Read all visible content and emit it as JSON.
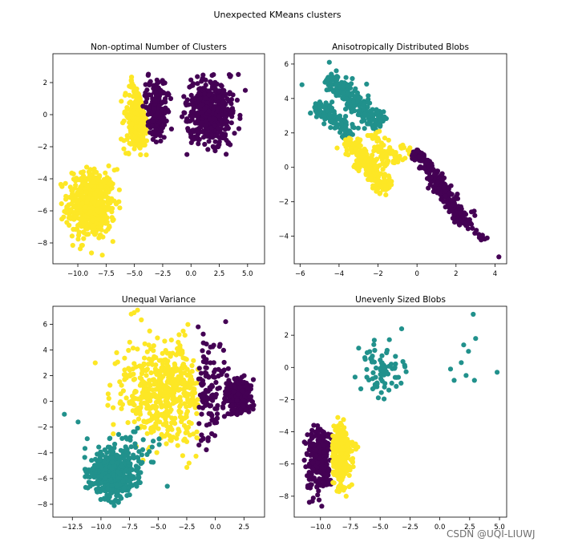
{
  "figure": {
    "suptitle": "Unexpected KMeans clusters",
    "watermark": "CSDN @UQI-LIUWJ"
  },
  "colors": {
    "purple": "#440154",
    "teal": "#21918c",
    "yellow": "#fde725"
  },
  "chart_data": [
    {
      "type": "scatter",
      "title": "Non-optimal Number of Clusters",
      "xlim": [
        -12.2,
        6.5
      ],
      "ylim": [
        -9.3,
        3.8
      ],
      "xticks": [
        -10.0,
        -7.5,
        -5.0,
        -2.5,
        0.0,
        2.5,
        5.0
      ],
      "xtick_labels": [
        "−10.0",
        "−7.5",
        "−5.0",
        "−2.5",
        "0.0",
        "2.5",
        "5.0"
      ],
      "yticks": [
        2,
        0,
        -2,
        -4,
        -6,
        -8
      ],
      "ytick_labels": [
        "2",
        "0",
        "−2",
        "−4",
        "−6",
        "−8"
      ],
      "clusters": [
        {
          "color": "yellow",
          "shape": "gauss",
          "cx": -8.8,
          "cy": -5.6,
          "sx": 1.05,
          "sy": 1.1,
          "n": 520,
          "range": [
            -11.6,
            -6.1,
            -8.9,
            -3.1
          ]
        },
        {
          "color": "yellow",
          "shape": "gauss",
          "cx": -4.6,
          "cy": -0.3,
          "sx": 0.65,
          "sy": 1.0,
          "n": 260,
          "range": [
            -6.2,
            -3.9,
            -2.6,
            2.9
          ],
          "xmax_line": [
            -3.9,
            -0.45
          ]
        },
        {
          "color": "purple",
          "shape": "gauss",
          "cx": -3.0,
          "cy": 0.4,
          "sx": 0.55,
          "sy": 0.95,
          "n": 200,
          "range": [
            -4.3,
            -1.7,
            -1.9,
            2.7
          ],
          "xmin_line": [
            -4.3,
            -0.45
          ]
        },
        {
          "color": "purple",
          "shape": "gauss",
          "cx": 1.7,
          "cy": 0.1,
          "sx": 1.0,
          "sy": 1.0,
          "n": 520,
          "range": [
            -0.9,
            5.8,
            -2.6,
            2.6
          ]
        }
      ]
    },
    {
      "type": "scatter",
      "title": "Anisotropically Distributed Blobs",
      "xlim": [
        -6.3,
        4.6
      ],
      "ylim": [
        -5.6,
        6.6
      ],
      "xticks": [
        -6,
        -4,
        -2,
        0,
        2,
        4
      ],
      "xtick_labels": [
        "−6",
        "−4",
        "−2",
        "0",
        "2",
        "4"
      ],
      "yticks": [
        6,
        4,
        2,
        0,
        -2,
        -4
      ],
      "ytick_labels": [
        "6",
        "4",
        "2",
        "0",
        "−2",
        "−4"
      ],
      "clusters": [
        {
          "color": "teal",
          "shape": "band",
          "x1": -4.6,
          "y1": 5.3,
          "x2": -1.8,
          "y2": 2.4,
          "w": 0.3,
          "n": 230
        },
        {
          "color": "teal",
          "shape": "band",
          "x1": -5.2,
          "y1": 3.6,
          "x2": -3.3,
          "y2": 1.9,
          "w": 0.25,
          "n": 120
        },
        {
          "color": "yellow",
          "shape": "band",
          "x1": -3.6,
          "y1": 1.7,
          "x2": -1.5,
          "y2": -1.3,
          "w": 0.28,
          "n": 230
        },
        {
          "color": "yellow",
          "shape": "band",
          "x1": -2.4,
          "y1": 2.0,
          "x2": -1.0,
          "y2": 0.2,
          "w": 0.2,
          "n": 70
        },
        {
          "color": "yellow",
          "shape": "band",
          "x1": -0.8,
          "y1": 1.3,
          "x2": -0.2,
          "y2": 0.6,
          "w": 0.12,
          "n": 18
        },
        {
          "color": "purple",
          "shape": "band",
          "x1": -0.1,
          "y1": 1.0,
          "x2": 2.5,
          "y2": -3.2,
          "w": 0.22,
          "n": 260
        },
        {
          "color": "purple",
          "shape": "band",
          "x1": 2.5,
          "y1": -3.2,
          "x2": 3.5,
          "y2": -4.2,
          "w": 0.12,
          "n": 20
        }
      ],
      "extra_points": [
        {
          "color": "purple",
          "x": 4.2,
          "y": -5.2
        },
        {
          "color": "teal",
          "x": -5.9,
          "y": 4.8
        },
        {
          "color": "teal",
          "x": -4.5,
          "y": 6.1
        },
        {
          "color": "teal",
          "x": -5.2,
          "y": 3.7
        },
        {
          "color": "yellow",
          "x": -1.6,
          "y": -1.6
        },
        {
          "color": "purple",
          "x": 3.6,
          "y": -4.1
        }
      ]
    },
    {
      "type": "scatter",
      "title": "Unequal Variance",
      "xlim": [
        -14.2,
        4.3
      ],
      "ylim": [
        -9.0,
        7.4
      ],
      "xticks": [
        -12.5,
        -10.0,
        -7.5,
        -5.0,
        -2.5,
        0.0,
        2.5
      ],
      "xtick_labels": [
        "−12.5",
        "−10.0",
        "−7.5",
        "−5.0",
        "−2.5",
        "0.0",
        "2.5"
      ],
      "yticks": [
        6,
        4,
        2,
        0,
        -2,
        -4,
        -6,
        -8
      ],
      "ytick_labels": [
        "6",
        "4",
        "2",
        "0",
        "−2",
        "−4",
        "−6",
        "−8"
      ],
      "clusters": [
        {
          "color": "yellow",
          "shape": "gauss",
          "cx": -4.3,
          "cy": 0.6,
          "sx": 2.0,
          "sy": 2.0,
          "n": 520,
          "range": [
            -9.5,
            -1.5,
            -5.2,
            7.2
          ]
        },
        {
          "color": "purple",
          "shape": "gauss",
          "cx": 2.0,
          "cy": 0.3,
          "sx": 0.55,
          "sy": 0.7,
          "n": 260,
          "range": [
            0.5,
            3.6,
            -1.2,
            2.0
          ]
        },
        {
          "color": "purple",
          "shape": "gauss",
          "cx": -0.6,
          "cy": 0.6,
          "sx": 0.75,
          "sy": 2.0,
          "n": 110,
          "range": [
            -1.5,
            1.2,
            -4.2,
            6.2
          ]
        },
        {
          "color": "teal",
          "shape": "gauss",
          "cx": -9.0,
          "cy": -5.6,
          "sx": 1.05,
          "sy": 0.9,
          "n": 480,
          "range": [
            -11.5,
            -6.2,
            -8.7,
            -3.4
          ]
        },
        {
          "color": "teal",
          "shape": "gauss",
          "cx": -7.2,
          "cy": -3.6,
          "sx": 1.3,
          "sy": 0.8,
          "n": 45,
          "range": [
            -10.0,
            -4.5,
            -6.6,
            -2.0
          ]
        }
      ],
      "extra_points": [
        {
          "color": "teal",
          "x": -13.2,
          "y": -1.0
        },
        {
          "color": "teal",
          "x": -12.0,
          "y": -1.6
        },
        {
          "color": "teal",
          "x": -11.2,
          "y": -2.9
        },
        {
          "color": "teal",
          "x": -4.2,
          "y": -6.6
        },
        {
          "color": "purple",
          "x": 0.9,
          "y": 6.2
        },
        {
          "color": "purple",
          "x": -1.5,
          "y": 5.8
        },
        {
          "color": "purple",
          "x": 3.3,
          "y": -0.6
        },
        {
          "color": "yellow",
          "x": -6.8,
          "y": 7.1
        },
        {
          "color": "yellow",
          "x": -7.1,
          "y": 6.9
        },
        {
          "color": "yellow",
          "x": -10.5,
          "y": 3.0
        },
        {
          "color": "yellow",
          "x": -2.3,
          "y": -4.8
        }
      ]
    },
    {
      "type": "scatter",
      "title": "Unevenly Sized Blobs",
      "xlim": [
        -12.2,
        5.6
      ],
      "ylim": [
        -9.3,
        3.8
      ],
      "xticks": [
        -10.0,
        -7.5,
        -5.0,
        -2.5,
        0.0,
        2.5,
        5.0
      ],
      "xtick_labels": [
        "−10.0",
        "−7.5",
        "−5.0",
        "−2.5",
        "0.0",
        "2.5",
        "5.0"
      ],
      "yticks": [
        2,
        0,
        -2,
        -4,
        -6,
        -8
      ],
      "ytick_labels": [
        "2",
        "0",
        "−2",
        "−4",
        "−6",
        "−8"
      ],
      "clusters": [
        {
          "color": "purple",
          "shape": "gauss",
          "cx": -10.0,
          "cy": -5.7,
          "sx": 0.55,
          "sy": 1.0,
          "n": 260,
          "range": [
            -11.6,
            -9.05,
            -8.9,
            -3.4
          ]
        },
        {
          "color": "yellow",
          "shape": "gauss",
          "cx": -8.4,
          "cy": -5.5,
          "sx": 0.55,
          "sy": 1.0,
          "n": 260,
          "range": [
            -9.0,
            -6.8,
            -8.2,
            -3.1
          ]
        },
        {
          "color": "teal",
          "shape": "gauss",
          "cx": -4.8,
          "cy": -0.2,
          "sx": 0.9,
          "sy": 0.8,
          "n": 75,
          "range": [
            -7.0,
            -2.8,
            -2.0,
            2.1
          ]
        }
      ],
      "extra_points": [
        {
          "color": "teal",
          "x": 2.8,
          "y": 3.3
        },
        {
          "color": "teal",
          "x": 2.0,
          "y": 1.4
        },
        {
          "color": "teal",
          "x": 3.0,
          "y": 1.8
        },
        {
          "color": "teal",
          "x": 2.4,
          "y": 1.0
        },
        {
          "color": "teal",
          "x": 1.8,
          "y": 0.3
        },
        {
          "color": "teal",
          "x": 2.2,
          "y": -0.5
        },
        {
          "color": "teal",
          "x": 0.9,
          "y": -0.1
        },
        {
          "color": "teal",
          "x": 1.2,
          "y": -0.8
        },
        {
          "color": "teal",
          "x": 2.9,
          "y": -0.8
        },
        {
          "color": "teal",
          "x": 4.8,
          "y": -0.3
        },
        {
          "color": "teal",
          "x": -3.2,
          "y": 2.4
        },
        {
          "color": "teal",
          "x": -7.1,
          "y": -0.6
        },
        {
          "color": "teal",
          "x": -6.8,
          "y": 1.2
        }
      ]
    }
  ]
}
